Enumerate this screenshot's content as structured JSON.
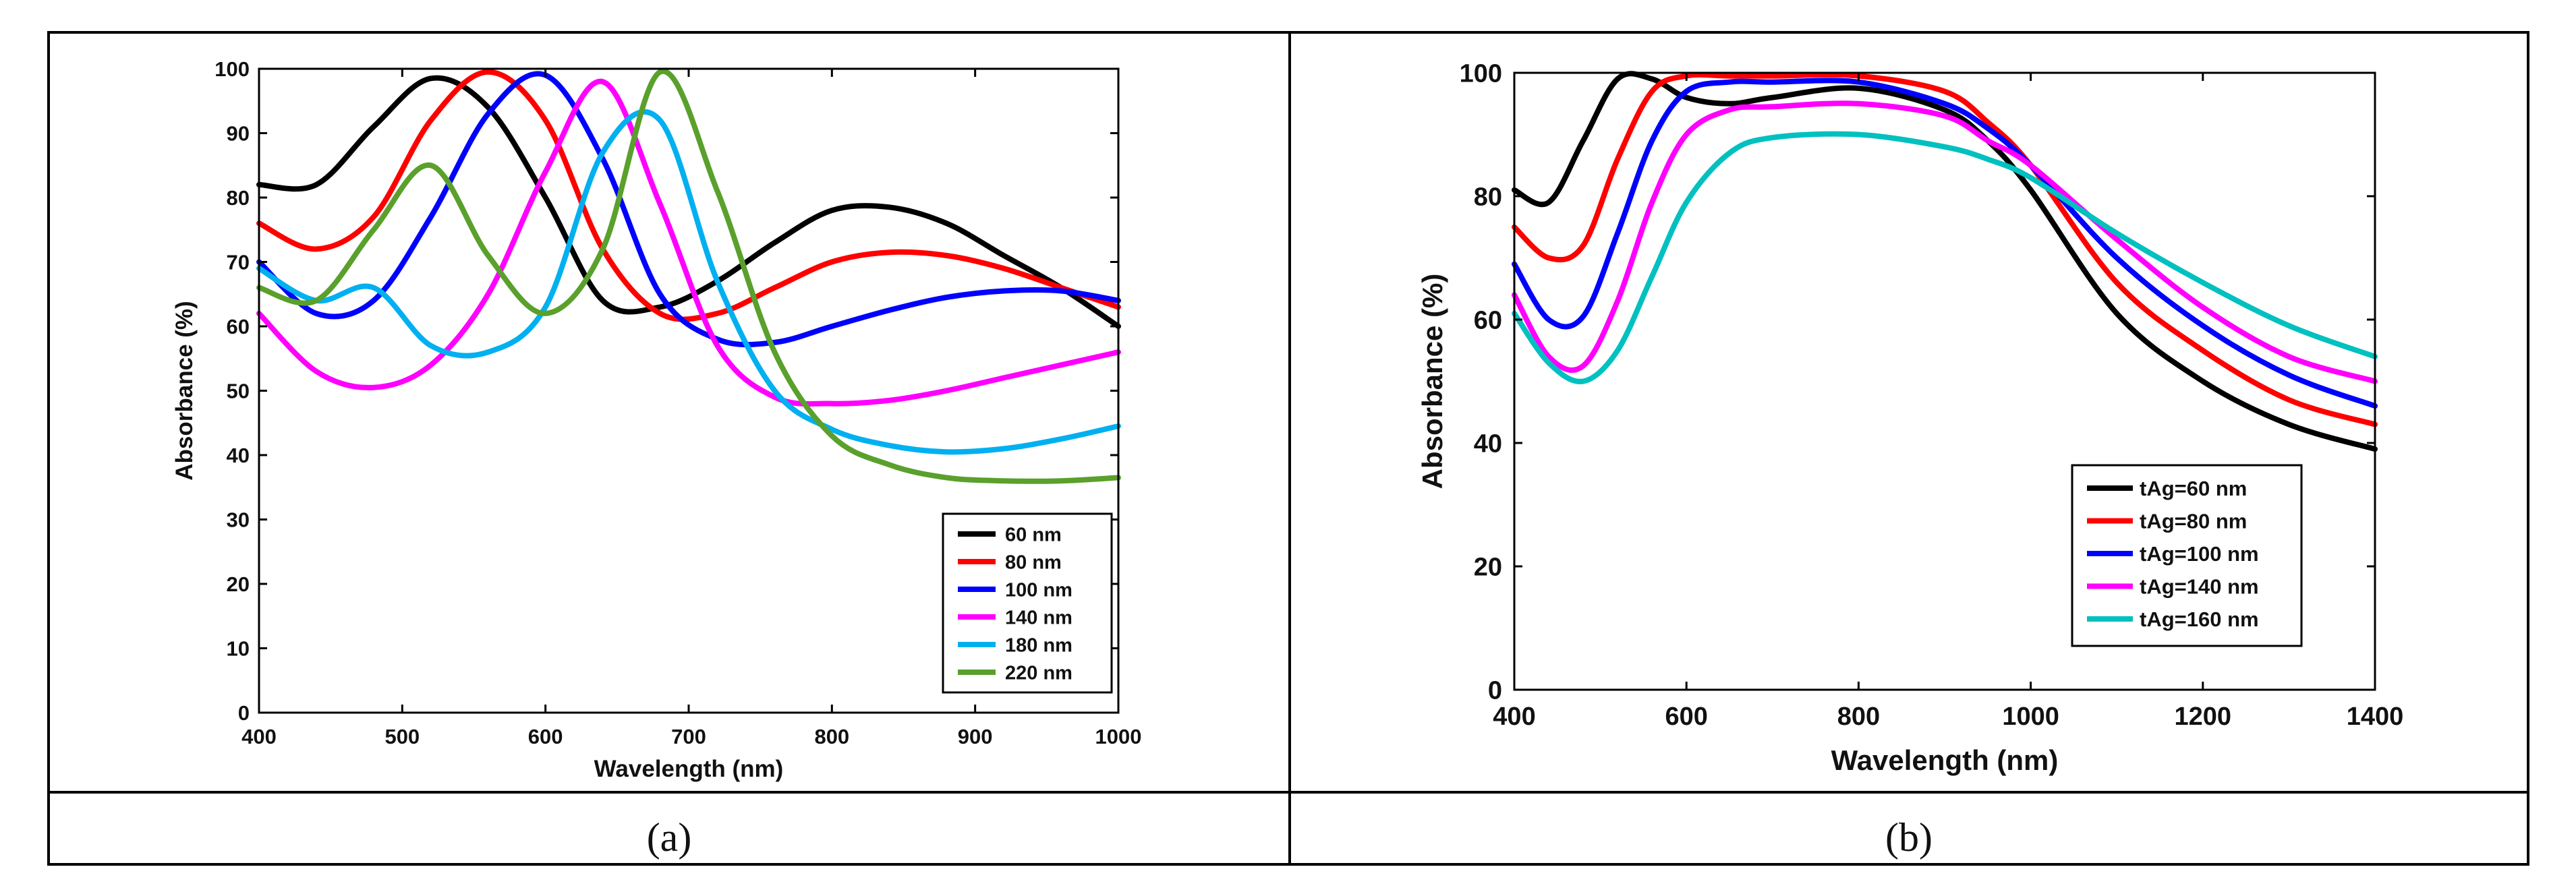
{
  "captions": [
    "(a)",
    "(b)"
  ],
  "chart_data": [
    {
      "type": "line",
      "panel": "(a)",
      "title": "",
      "xlabel": "Wavelength (nm)",
      "ylabel": "Absorbance (%)",
      "xlim": [
        400,
        1000
      ],
      "ylim": [
        0,
        100
      ],
      "xticks": [
        400,
        500,
        600,
        700,
        800,
        900,
        1000
      ],
      "yticks": [
        0,
        10,
        20,
        30,
        40,
        50,
        60,
        70,
        80,
        90,
        100
      ],
      "legend_position": "bottom-right",
      "series": [
        {
          "name": "60 nm",
          "color": "#000000",
          "x": [
            400,
            440,
            480,
            520,
            560,
            600,
            640,
            680,
            720,
            760,
            800,
            840,
            880,
            920,
            960,
            1000
          ],
          "y": [
            82,
            82,
            91,
            98.5,
            94,
            80,
            64,
            63,
            67,
            73,
            78,
            78.5,
            76,
            71,
            66,
            60
          ]
        },
        {
          "name": "80 nm",
          "color": "#ff0000",
          "x": [
            400,
            440,
            480,
            520,
            560,
            600,
            640,
            680,
            720,
            760,
            800,
            840,
            880,
            920,
            960,
            1000
          ],
          "y": [
            76,
            72,
            77,
            92,
            99.5,
            92,
            72,
            62,
            62,
            66,
            70,
            71.5,
            71,
            69,
            66,
            63
          ]
        },
        {
          "name": "100 nm",
          "color": "#0000ff",
          "x": [
            400,
            440,
            480,
            520,
            560,
            600,
            640,
            680,
            720,
            760,
            800,
            840,
            880,
            920,
            960,
            1000
          ],
          "y": [
            70,
            62,
            64,
            77,
            93,
            99,
            86,
            65,
            58,
            57.5,
            60,
            62.5,
            64.5,
            65.5,
            65.5,
            64
          ]
        },
        {
          "name": "140 nm",
          "color": "#ff00ff",
          "x": [
            400,
            440,
            480,
            520,
            560,
            600,
            640,
            680,
            720,
            760,
            800,
            840,
            880,
            920,
            960,
            1000
          ],
          "y": [
            62,
            53,
            50.5,
            54,
            65,
            84,
            98,
            79,
            57,
            49,
            48,
            48.5,
            50,
            52,
            54,
            56
          ]
        },
        {
          "name": "180 nm",
          "color": "#00b0f0",
          "x": [
            400,
            440,
            480,
            520,
            560,
            600,
            640,
            680,
            720,
            760,
            800,
            840,
            880,
            920,
            960,
            1000
          ],
          "y": [
            69,
            64,
            66,
            57,
            56,
            63,
            87,
            92,
            67,
            50,
            44,
            41.5,
            40.5,
            41,
            42.5,
            44.5
          ]
        },
        {
          "name": "220 nm",
          "color": "#5aa02c",
          "x": [
            400,
            440,
            480,
            520,
            560,
            600,
            640,
            680,
            720,
            760,
            800,
            840,
            880,
            920,
            960,
            1000
          ],
          "y": [
            66,
            64,
            75,
            85,
            71,
            62,
            72,
            99.5,
            81,
            56,
            43,
            38.5,
            36.5,
            36,
            36,
            36.5
          ]
        }
      ]
    },
    {
      "type": "line",
      "panel": "(b)",
      "title": "",
      "xlabel": "Wavelength (nm)",
      "ylabel": "Absorbance (%)",
      "xlim": [
        400,
        1400
      ],
      "ylim": [
        0,
        100
      ],
      "xticks": [
        400,
        600,
        800,
        1000,
        1200,
        1400
      ],
      "yticks": [
        0,
        20,
        40,
        60,
        80,
        100
      ],
      "legend_position": "bottom-right",
      "series": [
        {
          "name": "tAg=60 nm",
          "color": "#000000",
          "x": [
            400,
            440,
            480,
            520,
            560,
            600,
            650,
            700,
            800,
            900,
            950,
            1000,
            1100,
            1200,
            1300,
            1400
          ],
          "y": [
            81,
            79,
            89,
            99,
            99,
            96,
            95,
            96,
            97.5,
            94,
            89,
            81,
            61,
            50,
            43,
            39
          ]
        },
        {
          "name": "tAg=80 nm",
          "color": "#ff0000",
          "x": [
            400,
            440,
            480,
            520,
            560,
            600,
            650,
            700,
            800,
            900,
            950,
            1000,
            1100,
            1200,
            1300,
            1400
          ],
          "y": [
            75,
            70,
            72,
            86,
            97,
            99.5,
            99.5,
            99.5,
            99.5,
            97,
            92,
            85,
            66,
            55,
            47,
            43
          ]
        },
        {
          "name": "tAg=100 nm",
          "color": "#0000ff",
          "x": [
            400,
            440,
            480,
            520,
            560,
            600,
            650,
            700,
            800,
            900,
            950,
            1000,
            1100,
            1200,
            1300,
            1400
          ],
          "y": [
            69,
            60,
            60.5,
            74,
            89,
            97,
            98.5,
            98.5,
            98.5,
            95,
            91,
            85,
            70,
            59,
            51,
            46
          ]
        },
        {
          "name": "tAg=140 nm",
          "color": "#ff00ff",
          "x": [
            400,
            440,
            480,
            520,
            560,
            600,
            650,
            700,
            800,
            900,
            950,
            1000,
            1100,
            1200,
            1300,
            1400
          ],
          "y": [
            64,
            54,
            52.5,
            63,
            79,
            90,
            94,
            94.5,
            95,
            93,
            89,
            85,
            73,
            62,
            54,
            50
          ]
        },
        {
          "name": "tAg=160 nm",
          "color": "#00c0c0",
          "x": [
            400,
            440,
            480,
            520,
            560,
            600,
            650,
            700,
            800,
            900,
            950,
            1000,
            1100,
            1200,
            1300,
            1400
          ],
          "y": [
            61,
            53,
            50,
            55,
            67,
            79,
            87,
            89.5,
            90,
            88,
            86,
            83,
            74,
            66,
            59,
            54
          ]
        }
      ]
    }
  ]
}
